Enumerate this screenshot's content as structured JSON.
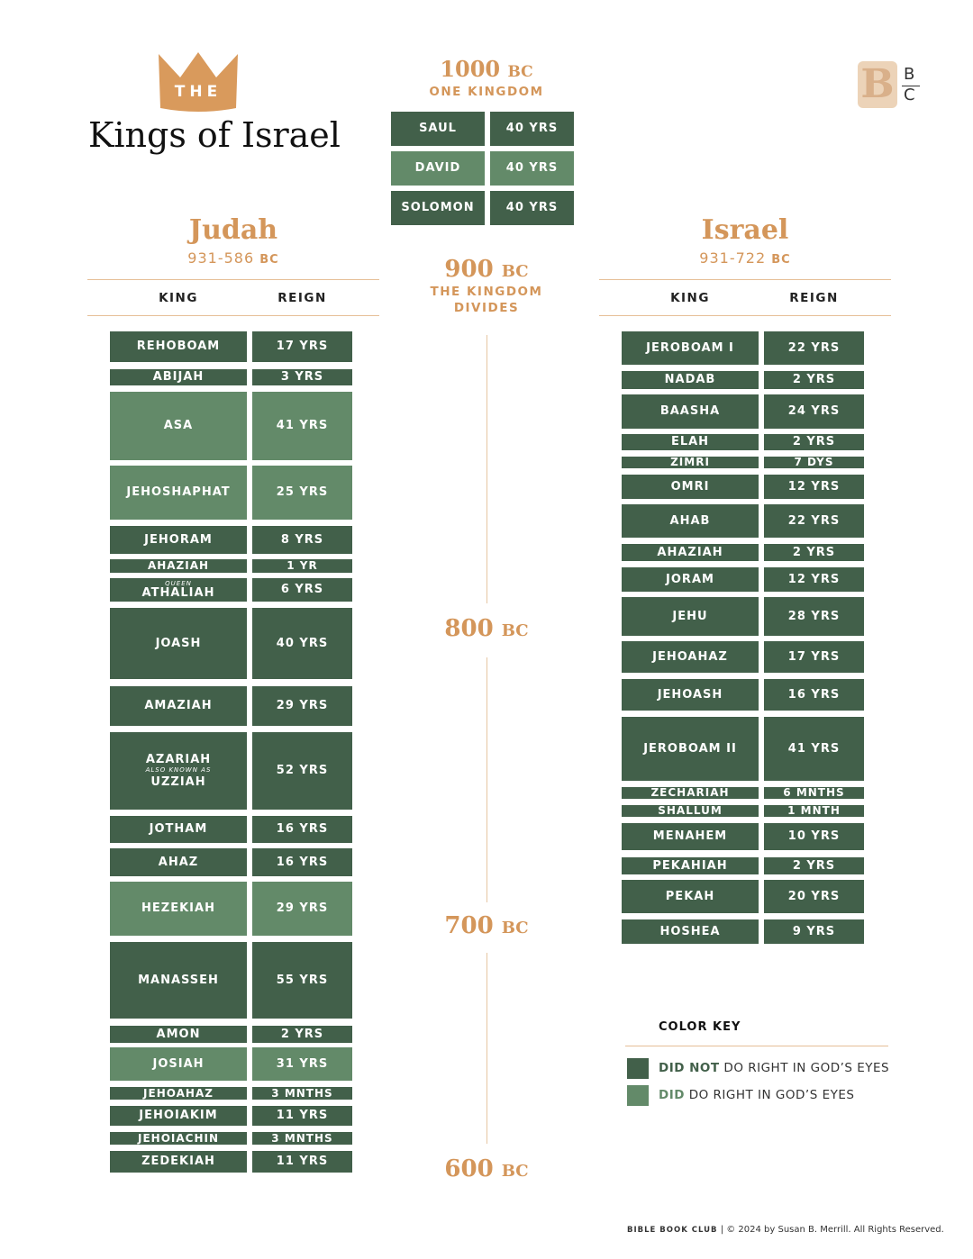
{
  "header": {
    "crown": "THE",
    "title": "Kings of Israel",
    "logo": [
      "B",
      "C"
    ]
  },
  "united": {
    "year": "1000",
    "era": "BC",
    "caption": "ONE KINGDOM",
    "kings": [
      {
        "name": "SAUL",
        "reign": "40 YRS",
        "color": "#42604a"
      },
      {
        "name": "DAVID",
        "reign": "40 YRS",
        "color": "#638a69"
      },
      {
        "name": "SOLOMON",
        "reign": "40 YRS",
        "color": "#42604a"
      }
    ]
  },
  "judah": {
    "title": "Judah",
    "dates": "931-586",
    "era": "BC",
    "columns": [
      "KING",
      "REIGN"
    ],
    "kings": [
      {
        "name": "REHOBOAM",
        "reign": "17 YRS",
        "color": "#42604a"
      },
      {
        "name": "ABIJAH",
        "reign": "3 YRS",
        "color": "#42604a"
      },
      {
        "name": "ASA",
        "reign": "41 YRS",
        "color": "#638a69"
      },
      {
        "name": "JEHOSHAPHAT",
        "reign": "25 YRS",
        "color": "#638a69"
      },
      {
        "name": "JEHORAM",
        "reign": "8 YRS",
        "color": "#42604a"
      },
      {
        "name": "AHAZIAH",
        "reign": "1 YR",
        "color": "#42604a"
      },
      {
        "prefix": "QUEEN",
        "name": "ATHALIAH",
        "reign": "6 YRS",
        "color": "#42604a"
      },
      {
        "name": "JOASH",
        "reign": "40 YRS",
        "color": "#42604a"
      },
      {
        "name": "AMAZIAH",
        "reign": "29 YRS",
        "color": "#42604a"
      },
      {
        "name": "AZARIAH",
        "note": "ALSO KNOWN AS",
        "alt": "UZZIAH",
        "reign": "52 YRS",
        "color": "#42604a"
      },
      {
        "name": "JOTHAM",
        "reign": "16 YRS",
        "color": "#42604a"
      },
      {
        "name": "AHAZ",
        "reign": "16 YRS",
        "color": "#42604a"
      },
      {
        "name": "HEZEKIAH",
        "reign": "29 YRS",
        "color": "#638a69"
      },
      {
        "name": "MANASSEH",
        "reign": "55 YRS",
        "color": "#42604a"
      },
      {
        "name": "AMON",
        "reign": "2 YRS",
        "color": "#42604a"
      },
      {
        "name": "JOSIAH",
        "reign": "31 YRS",
        "color": "#638a69"
      },
      {
        "name": "JEHOAHAZ",
        "reign": "3 MNTHS",
        "color": "#42604a"
      },
      {
        "name": "JEHOIAKIM",
        "reign": "11 YRS",
        "color": "#42604a"
      },
      {
        "name": "JEHOIACHIN",
        "reign": "3 MNTHS",
        "color": "#42604a"
      },
      {
        "name": "ZEDEKIAH",
        "reign": "11 YRS",
        "color": "#42604a"
      }
    ]
  },
  "israel": {
    "title": "Israel",
    "dates": "931-722",
    "era": "BC",
    "columns": [
      "KING",
      "REIGN"
    ],
    "kings": [
      {
        "name": "JEROBOAM I",
        "reign": "22 YRS",
        "color": "#42604a"
      },
      {
        "name": "NADAB",
        "reign": "2 YRS",
        "color": "#42604a"
      },
      {
        "name": "BAASHA",
        "reign": "24 YRS",
        "color": "#42604a"
      },
      {
        "name": "ELAH",
        "reign": "2 YRS",
        "color": "#42604a"
      },
      {
        "name": "ZIMRI",
        "reign": "7 DYS",
        "color": "#42604a"
      },
      {
        "name": "OMRI",
        "reign": "12 YRS",
        "color": "#42604a"
      },
      {
        "name": "AHAB",
        "reign": "22 YRS",
        "color": "#42604a"
      },
      {
        "name": "AHAZIAH",
        "reign": "2 YRS",
        "color": "#42604a"
      },
      {
        "name": "JORAM",
        "reign": "12 YRS",
        "color": "#42604a"
      },
      {
        "name": "JEHU",
        "reign": "28 YRS",
        "color": "#42604a"
      },
      {
        "name": "JEHOAHAZ",
        "reign": "17 YRS",
        "color": "#42604a"
      },
      {
        "name": "JEHOASH",
        "reign": "16 YRS",
        "color": "#42604a"
      },
      {
        "name": "JEROBOAM II",
        "reign": "41 YRS",
        "color": "#42604a"
      },
      {
        "name": "ZECHARIAH",
        "reign": "6 MNTHS",
        "color": "#42604a"
      },
      {
        "name": "SHALLUM",
        "reign": "1 MNTH",
        "color": "#42604a"
      },
      {
        "name": "MENAHEM",
        "reign": "10 YRS",
        "color": "#42604a"
      },
      {
        "name": "PEKAHIAH",
        "reign": "2 YRS",
        "color": "#42604a"
      },
      {
        "name": "PEKAH",
        "reign": "20 YRS",
        "color": "#42604a"
      },
      {
        "name": "HOSHEA",
        "reign": "9 YRS",
        "color": "#42604a"
      }
    ]
  },
  "timeline": [
    {
      "year": "900",
      "era": "BC",
      "caption": [
        "THE KINGDOM",
        "DIVIDES"
      ]
    },
    {
      "year": "800",
      "era": "BC"
    },
    {
      "year": "700",
      "era": "BC"
    },
    {
      "year": "600",
      "era": "BC"
    }
  ],
  "color_key": {
    "title": "COLOR KEY",
    "items": [
      {
        "emphasis": "DID NOT",
        "text": "DO RIGHT IN GOD’S EYES",
        "color": "#42604a"
      },
      {
        "emphasis": "DID",
        "text": "DO RIGHT IN GOD’S EYES",
        "color": "#638a69"
      }
    ]
  },
  "footer": {
    "brand": "BIBLE BOOK CLUB",
    "copyright": "© 2024 by Susan B. Merrill. All Rights Reserved."
  }
}
